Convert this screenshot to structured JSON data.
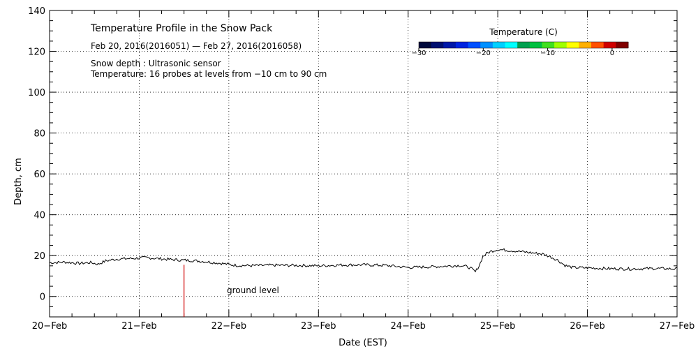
{
  "chart_data": {
    "type": "line",
    "title": "Temperature Profile in the Snow Pack",
    "subtitle": "Feb 20, 2016(2016051) — Feb 27, 2016(2016058)",
    "notes": [
      "Snow depth : Ultrasonic sensor",
      "Temperature: 16 probes at levels from −10 cm to 90 cm"
    ],
    "xlabel": "Date (EST)",
    "ylabel": "Depth, cm",
    "x_tick_labels": [
      "20−Feb",
      "21−Feb",
      "22−Feb",
      "23−Feb",
      "24−Feb",
      "25−Feb",
      "26−Feb",
      "27−Feb"
    ],
    "y_tick_labels": [
      "0",
      "20",
      "40",
      "60",
      "80",
      "100",
      "120",
      "140"
    ],
    "xlim": [
      "2016-02-20",
      "2016-02-27"
    ],
    "ylim": [
      -10,
      140
    ],
    "grid": true,
    "annotation": "ground level",
    "event_marker_date": "2016-02-21 12:00",
    "series": [
      {
        "label": "Snow depth",
        "color": "#000000",
        "points": [
          [
            "2016-02-20 00:00",
            16.5
          ],
          [
            "2016-02-20 04:00",
            16.8
          ],
          [
            "2016-02-20 08:00",
            16.2
          ],
          [
            "2016-02-20 11:00",
            16.6
          ],
          [
            "2016-02-20 13:00",
            15.8
          ],
          [
            "2016-02-20 15:00",
            17.4
          ],
          [
            "2016-02-20 18:00",
            18.3
          ],
          [
            "2016-02-20 22:00",
            18.6
          ],
          [
            "2016-02-21 02:00",
            19.0
          ],
          [
            "2016-02-21 06:00",
            18.4
          ],
          [
            "2016-02-21 10:00",
            17.9
          ],
          [
            "2016-02-21 14:00",
            17.6
          ],
          [
            "2016-02-21 18:00",
            17.0
          ],
          [
            "2016-02-21 22:00",
            16.2
          ],
          [
            "2016-02-22 02:00",
            15.2
          ],
          [
            "2016-02-22 06:00",
            15.1
          ],
          [
            "2016-02-22 12:00",
            15.3
          ],
          [
            "2016-02-22 18:00",
            15.2
          ],
          [
            "2016-02-23 00:00",
            15.0
          ],
          [
            "2016-02-23 06:00",
            15.4
          ],
          [
            "2016-02-23 12:00",
            15.5
          ],
          [
            "2016-02-23 18:00",
            15.2
          ],
          [
            "2016-02-24 00:00",
            14.2
          ],
          [
            "2016-02-24 06:00",
            14.5
          ],
          [
            "2016-02-24 12:00",
            15.0
          ],
          [
            "2016-02-24 14:00",
            15.2
          ],
          [
            "2016-02-24 16:00",
            14.5
          ],
          [
            "2016-02-24 17:00",
            13.5
          ],
          [
            "2016-02-24 18:00",
            12.0
          ],
          [
            "2016-02-24 19:00",
            15.0
          ],
          [
            "2016-02-24 20:00",
            19.5
          ],
          [
            "2016-02-24 21:00",
            21.0
          ],
          [
            "2016-02-24 22:00",
            22.0
          ],
          [
            "2016-02-25 00:00",
            23.0
          ],
          [
            "2016-02-25 04:00",
            22.4
          ],
          [
            "2016-02-25 08:00",
            21.6
          ],
          [
            "2016-02-25 12:00",
            20.8
          ],
          [
            "2016-02-25 14:00",
            19.5
          ],
          [
            "2016-02-25 16:00",
            17.8
          ],
          [
            "2016-02-25 18:00",
            15.2
          ],
          [
            "2016-02-25 20:00",
            14.2
          ],
          [
            "2016-02-26 00:00",
            14.0
          ],
          [
            "2016-02-26 06:00",
            13.6
          ],
          [
            "2016-02-26 12:00",
            13.5
          ],
          [
            "2016-02-26 18:00",
            13.7
          ],
          [
            "2016-02-27 00:00",
            13.5
          ]
        ]
      }
    ],
    "colorbar": {
      "label": "Temperature (C)",
      "tick_labels": [
        "−30",
        "−20",
        "−10",
        "0"
      ],
      "range": [
        -30,
        2.5
      ],
      "colors": [
        "#000a3c",
        "#001070",
        "#0018a8",
        "#0024e0",
        "#0050ff",
        "#0090ff",
        "#00d0ff",
        "#00ffff",
        "#00a050",
        "#00c040",
        "#40e020",
        "#a0ff00",
        "#ffff00",
        "#ffb000",
        "#ff5000",
        "#d00000",
        "#800000"
      ]
    }
  }
}
